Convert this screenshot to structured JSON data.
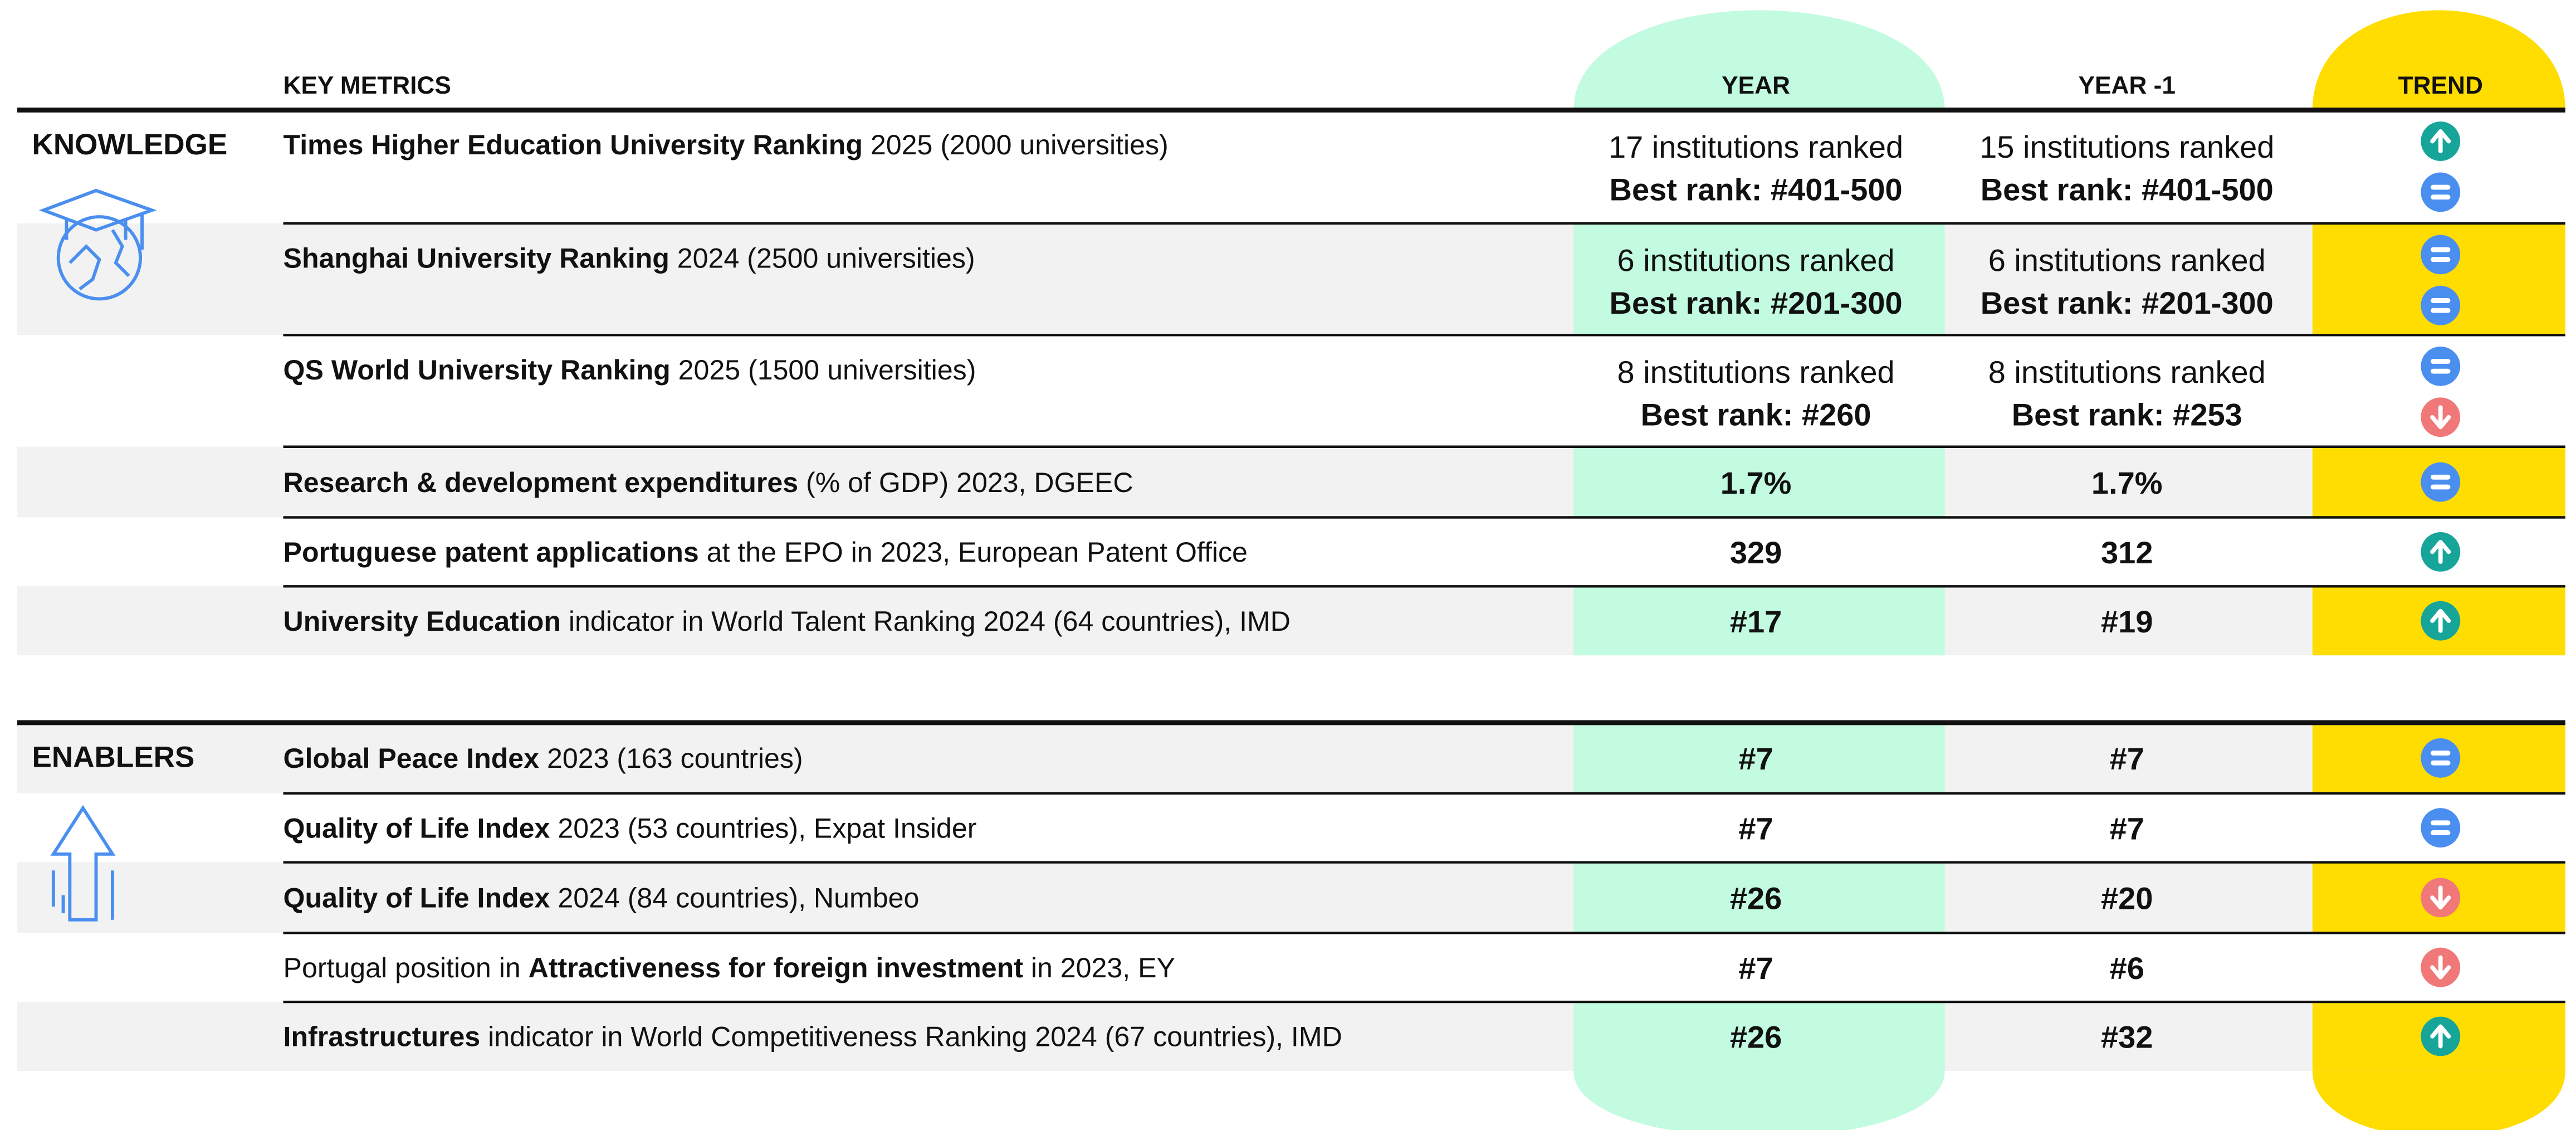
{
  "header": {
    "metric": "KEY METRICS",
    "year": "YEAR",
    "year_prev": "YEAR -1",
    "trend": "TREND"
  },
  "sections": [
    {
      "label": "KNOWLEDGE",
      "rows": [
        {
          "metric": [
            {
              "text": "Times Higher Education University Ranking",
              "bold": true
            },
            {
              "text": " 2025 (2000 universities)",
              "bold": false
            }
          ],
          "year": [
            "17 institutions ranked",
            "Best rank: #401-500"
          ],
          "year_prev": [
            "15 institutions ranked",
            "Best rank: #401-500"
          ],
          "trend": [
            "up",
            "equal"
          ]
        },
        {
          "metric": [
            {
              "text": "Shanghai University Ranking",
              "bold": true
            },
            {
              "text": " 2024 (2500 universities)",
              "bold": false
            }
          ],
          "year": [
            "6 institutions ranked",
            "Best rank: #201-300"
          ],
          "year_prev": [
            "6 institutions ranked",
            "Best rank: #201-300"
          ],
          "trend": [
            "equal",
            "equal"
          ]
        },
        {
          "metric": [
            {
              "text": "QS World University Ranking",
              "bold": true
            },
            {
              "text": " 2025 (1500 universities)",
              "bold": false
            }
          ],
          "year": [
            "8 institutions ranked",
            "Best rank: #260"
          ],
          "year_prev": [
            "8 institutions ranked",
            "Best rank: #253"
          ],
          "trend": [
            "equal",
            "down"
          ]
        },
        {
          "metric": [
            {
              "text": "Research & development expenditures",
              "bold": true
            },
            {
              "text": " (% of GDP) 2023, DGEEC",
              "bold": false
            }
          ],
          "year": [
            "1.7%"
          ],
          "year_prev": [
            "1.7%"
          ],
          "trend": [
            "equal"
          ]
        },
        {
          "metric": [
            {
              "text": "Portuguese patent applications",
              "bold": true
            },
            {
              "text": " at the EPO in 2023, European Patent Office",
              "bold": false
            }
          ],
          "year": [
            "329"
          ],
          "year_prev": [
            "312"
          ],
          "trend": [
            "up"
          ]
        },
        {
          "metric": [
            {
              "text": "University Education",
              "bold": true
            },
            {
              "text": " indicator in World Talent Ranking 2024 (64 countries), IMD",
              "bold": false
            }
          ],
          "year": [
            "#17"
          ],
          "year_prev": [
            "#19"
          ],
          "trend": [
            "up"
          ]
        }
      ]
    },
    {
      "label": "ENABLERS",
      "rows": [
        {
          "metric": [
            {
              "text": "Global Peace Index",
              "bold": true
            },
            {
              "text": " 2023 (163 countries)",
              "bold": false
            }
          ],
          "year": [
            "#7"
          ],
          "year_prev": [
            "#7"
          ],
          "trend": [
            "equal"
          ]
        },
        {
          "metric": [
            {
              "text": "Quality of Life Index",
              "bold": true
            },
            {
              "text": " 2023 (53 countries), Expat Insider",
              "bold": false
            }
          ],
          "year": [
            "#7"
          ],
          "year_prev": [
            "#7"
          ],
          "trend": [
            "equal"
          ]
        },
        {
          "metric": [
            {
              "text": "Quality of Life Index",
              "bold": true
            },
            {
              "text": " 2024 (84 countries), Numbeo",
              "bold": false
            }
          ],
          "year": [
            "#26"
          ],
          "year_prev": [
            "#20"
          ],
          "trend": [
            "down"
          ]
        },
        {
          "metric": [
            {
              "text": "Portugal position in ",
              "bold": false
            },
            {
              "text": "Attractiveness for foreign investment",
              "bold": true
            },
            {
              "text": " in 2023, EY",
              "bold": false
            }
          ],
          "year": [
            "#7"
          ],
          "year_prev": [
            "#6"
          ],
          "trend": [
            "down"
          ]
        },
        {
          "metric": [
            {
              "text": "Infrastructures",
              "bold": true
            },
            {
              "text": " indicator in World Competitiveness Ranking 2024 (67 countries), IMD",
              "bold": false
            }
          ],
          "year": [
            "#26"
          ],
          "year_prev": [
            "#32"
          ],
          "trend": [
            "up"
          ]
        }
      ]
    }
  ]
}
